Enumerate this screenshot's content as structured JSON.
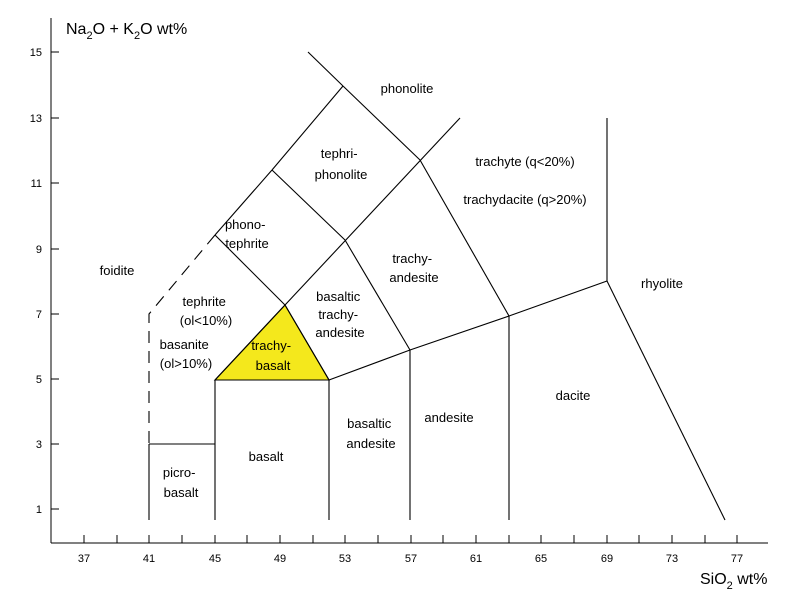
{
  "axes": {
    "y_title": {
      "part1": "Na",
      "sub1": "2",
      "part2": "O + K",
      "sub2": "2",
      "part3": "O wt%"
    },
    "x_title": {
      "part1": "SiO",
      "sub1": "2",
      "part2": " wt%"
    },
    "x_ticks": [
      "37",
      "41",
      "45",
      "49",
      "53",
      "57",
      "61",
      "65",
      "69",
      "73",
      "77"
    ],
    "y_ticks": [
      "1",
      "3",
      "5",
      "7",
      "9",
      "11",
      "13",
      "15"
    ]
  },
  "highlight": {
    "field": "trachybasalt",
    "color": "#f4e81c"
  },
  "fields": {
    "foidite": "foidite",
    "tephrite": {
      "line1": "tephrite",
      "line2": "(ol<10%)"
    },
    "basanite": {
      "line1": "basanite",
      "line2": "(ol>10%)"
    },
    "picrobasalt": {
      "line1": "picro-",
      "line2": "basalt"
    },
    "basalt": "basalt",
    "trachybasalt": {
      "line1": "trachy-",
      "line2": "basalt"
    },
    "basaltic_andesite": {
      "line1": "basaltic",
      "line2": "andesite"
    },
    "basaltic_trachyandesite": {
      "line1": "basaltic",
      "line2": "trachy-",
      "line3": "andesite"
    },
    "phonotephrite": {
      "line1": "phono-",
      "line2": "tephrite"
    },
    "tephriphonolite": {
      "line1": "tephri-",
      "line2": "phonolite"
    },
    "phonolite": "phonolite",
    "trachyandesite": {
      "line1": "trachy-",
      "line2": "andesite"
    },
    "andesite": "andesite",
    "trachyte": "trachyte (q<20%)",
    "trachydacite": "trachydacite (q>20%)",
    "dacite": "dacite",
    "rhyolite": "rhyolite"
  }
}
